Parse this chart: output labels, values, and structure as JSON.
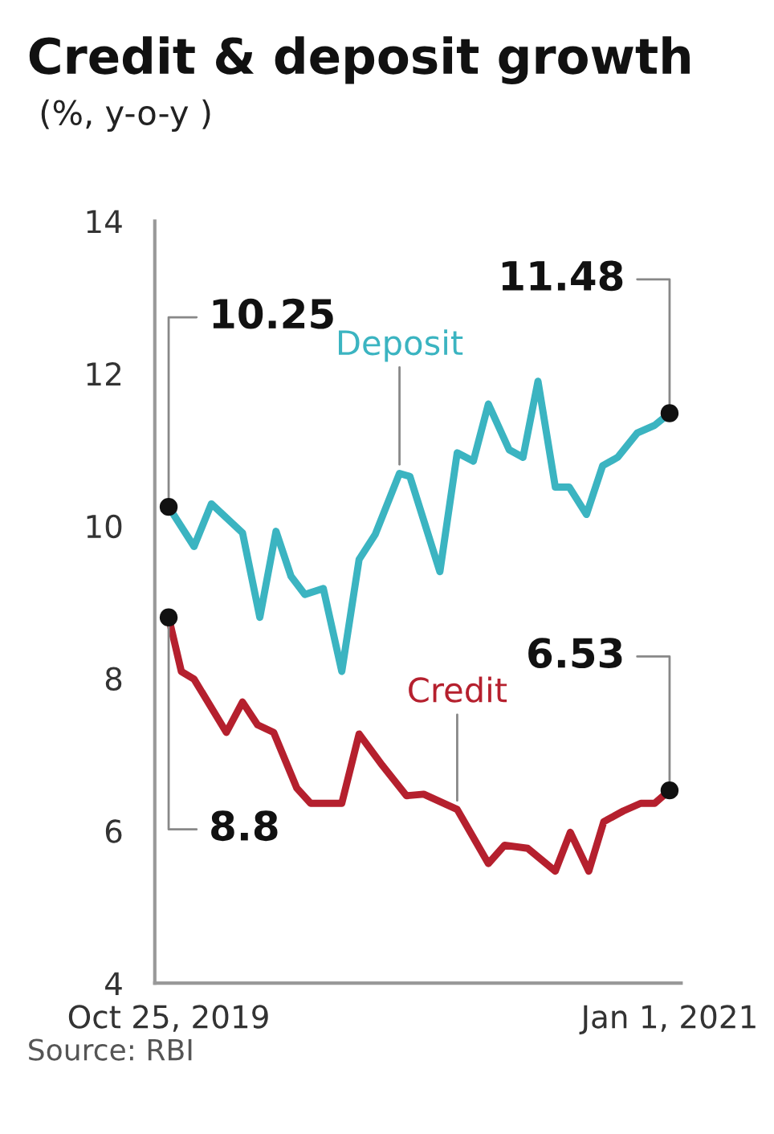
{
  "chart_data": {
    "type": "line",
    "title": "Credit & deposit growth",
    "subtitle": "(%, y-o-y )",
    "xlim": [
      "2019-10-13",
      "2021-01-11"
    ],
    "xticks": [
      {
        "value": "2019-10-25",
        "label": "Oct 25, 2019"
      },
      {
        "value": "2021-01-01",
        "label": "Jan 1, 2021"
      }
    ],
    "ylim": [
      4,
      14
    ],
    "yticks": [
      4,
      6,
      8,
      10,
      12,
      14
    ],
    "grid": false,
    "legend": false,
    "series": [
      {
        "name": "Deposit",
        "color": "#3bb4c1",
        "x": [
          "2019-10-25",
          "2019-11-16",
          "2019-12-01",
          "2019-12-28",
          "2020-01-12",
          "2020-01-26",
          "2020-02-08",
          "2020-02-20",
          "2020-03-07",
          "2020-03-23",
          "2020-04-07",
          "2020-04-21",
          "2020-05-12",
          "2020-05-21",
          "2020-06-16",
          "2020-07-01",
          "2020-07-15",
          "2020-07-28",
          "2020-08-15",
          "2020-08-27",
          "2020-09-09",
          "2020-09-24",
          "2020-10-06",
          "2020-10-21",
          "2020-11-04",
          "2020-11-17",
          "2020-12-04",
          "2020-12-19",
          "2021-01-01"
        ],
        "values": [
          10.25,
          9.73,
          10.29,
          9.91,
          8.8,
          9.93,
          9.34,
          9.1,
          9.18,
          8.09,
          9.56,
          9.89,
          10.69,
          10.65,
          9.4,
          10.96,
          10.85,
          11.6,
          11.0,
          10.9,
          11.9,
          10.51,
          10.51,
          10.15,
          10.79,
          10.9,
          11.22,
          11.32,
          11.48
        ]
      },
      {
        "name": "Credit",
        "color": "#b5202e",
        "x": [
          "2019-10-25",
          "2019-11-05",
          "2019-11-16",
          "2019-12-14",
          "2019-12-28",
          "2020-01-10",
          "2020-01-24",
          "2020-02-13",
          "2020-02-25",
          "2020-03-23",
          "2020-04-07",
          "2020-04-27",
          "2020-05-18",
          "2020-06-02",
          "2020-07-01",
          "2020-07-28",
          "2020-08-11",
          "2020-08-31",
          "2020-09-24",
          "2020-10-07",
          "2020-10-23",
          "2020-11-05",
          "2020-11-22",
          "2020-12-07",
          "2020-12-19",
          "2021-01-01"
        ],
        "values": [
          8.8,
          8.09,
          7.99,
          7.29,
          7.69,
          7.39,
          7.29,
          6.56,
          6.36,
          6.36,
          7.27,
          6.86,
          6.46,
          6.48,
          6.28,
          5.57,
          5.81,
          5.77,
          5.47,
          5.98,
          5.47,
          6.12,
          6.26,
          6.36,
          6.36,
          6.53
        ]
      }
    ],
    "annotations": [
      {
        "text": "10.25",
        "x": "2019-10-25",
        "y": 10.25
      },
      {
        "text": "8.8",
        "x": "2019-10-25",
        "y": 8.8
      },
      {
        "text": "11.48",
        "x": "2021-01-01",
        "y": 11.48
      },
      {
        "text": "6.53",
        "x": "2021-01-01",
        "y": 6.53
      },
      "Source: RBI"
    ]
  }
}
